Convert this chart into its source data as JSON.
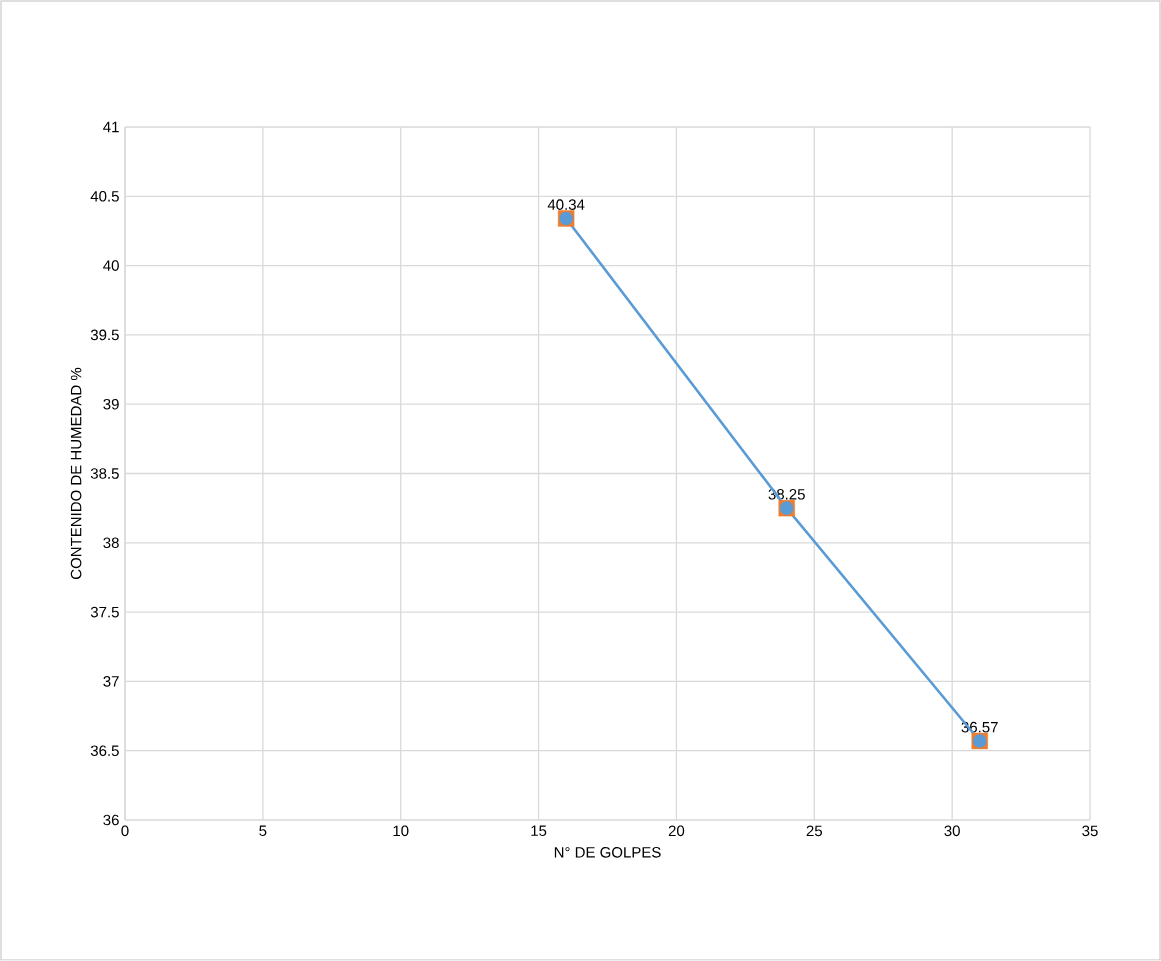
{
  "chart_data": {
    "type": "scatter",
    "xlabel": "N° DE GOLPES",
    "ylabel": "CONTENIDO DE HUMEDAD %",
    "x": [
      16,
      24,
      31
    ],
    "series": [
      {
        "color": "#ed7d31",
        "marker": "square",
        "values": [
          40.34,
          38.25,
          36.57
        ],
        "data_labels": true
      },
      {
        "type": "line",
        "color": "#5b9bd5",
        "marker": "circle",
        "line_style": "solid",
        "values": [
          40.34,
          38.25,
          36.57
        ]
      }
    ],
    "xlim": [
      0,
      35
    ],
    "xticks": [
      0,
      5,
      10,
      15,
      20,
      25,
      30,
      35
    ],
    "ylim": [
      36,
      41
    ],
    "yticks": [
      36,
      36.5,
      37,
      37.5,
      38,
      38.5,
      39,
      39.5,
      40,
      40.5,
      41
    ],
    "grid": true
  }
}
